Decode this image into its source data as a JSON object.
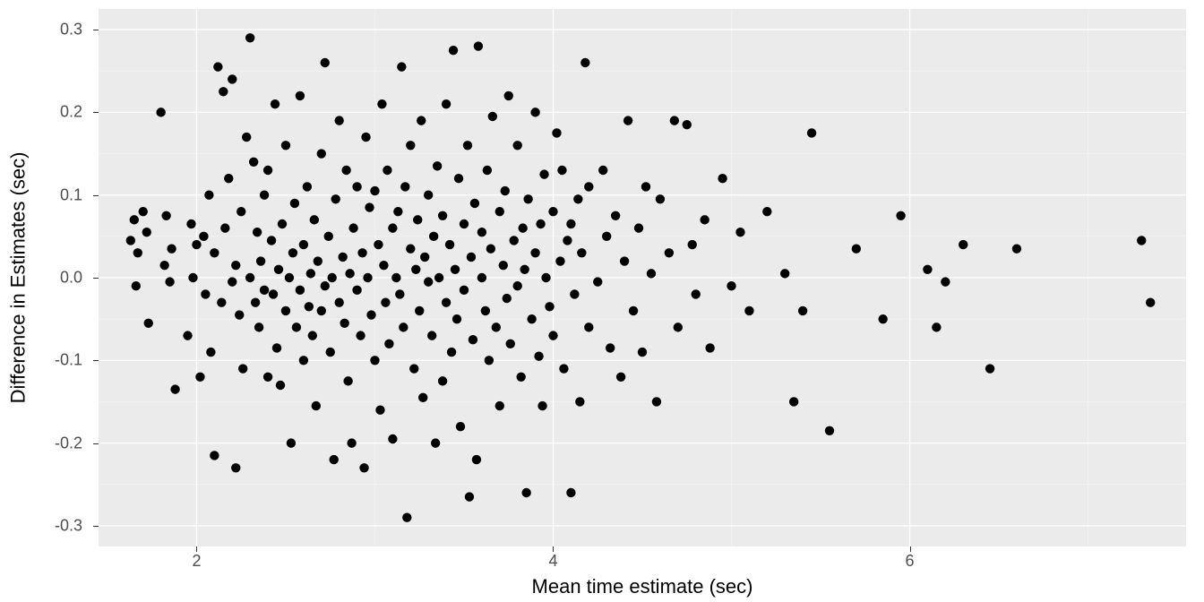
{
  "chart": {
    "type": "scatter",
    "background_color": "#ffffff",
    "panel_bg_color": "#ebebeb",
    "grid_major_color": "#ffffff",
    "grid_minor_color": "#f5f5f5",
    "point_color": "#000000",
    "point_radius": 5.2,
    "axis_text_color": "#4d4d4d",
    "axis_title_color": "#000000",
    "axis_title_fontsize": 22,
    "axis_text_fontsize": 18,
    "x": {
      "label": "Mean time estimate (sec)",
      "lim": [
        1.45,
        7.55
      ],
      "major_ticks": [
        2,
        4,
        6
      ],
      "minor_ticks": [
        3,
        5,
        7
      ]
    },
    "y": {
      "label": "Difference in Estimates (sec)",
      "lim": [
        -0.325,
        0.325
      ],
      "major_ticks": [
        -0.3,
        -0.2,
        -0.1,
        0.0,
        0.1,
        0.2,
        0.3
      ],
      "minor_ticks": [
        -0.25,
        -0.15,
        -0.05,
        0.05,
        0.15,
        0.25
      ]
    },
    "y_tick_labels": [
      "-0.3",
      "-0.2",
      "-0.1",
      "0.0",
      "0.1",
      "0.2",
      "0.3"
    ],
    "x_tick_labels": [
      "2",
      "4",
      "6"
    ],
    "points": [
      [
        1.63,
        0.045
      ],
      [
        1.65,
        0.07
      ],
      [
        1.66,
        -0.01
      ],
      [
        1.67,
        0.03
      ],
      [
        1.7,
        0.08
      ],
      [
        1.72,
        0.055
      ],
      [
        1.73,
        -0.055
      ],
      [
        1.8,
        0.2
      ],
      [
        1.82,
        0.015
      ],
      [
        1.83,
        0.075
      ],
      [
        1.85,
        -0.005
      ],
      [
        1.86,
        0.035
      ],
      [
        1.88,
        -0.135
      ],
      [
        1.95,
        -0.07
      ],
      [
        1.97,
        0.065
      ],
      [
        1.98,
        0.0
      ],
      [
        2.0,
        0.04
      ],
      [
        2.02,
        -0.12
      ],
      [
        2.04,
        0.05
      ],
      [
        2.05,
        -0.02
      ],
      [
        2.07,
        0.1
      ],
      [
        2.08,
        -0.09
      ],
      [
        2.1,
        0.03
      ],
      [
        2.1,
        -0.215
      ],
      [
        2.12,
        0.255
      ],
      [
        2.14,
        -0.03
      ],
      [
        2.15,
        0.225
      ],
      [
        2.16,
        0.06
      ],
      [
        2.18,
        0.12
      ],
      [
        2.2,
        -0.005
      ],
      [
        2.2,
        0.24
      ],
      [
        2.22,
        0.015
      ],
      [
        2.22,
        -0.23
      ],
      [
        2.24,
        -0.045
      ],
      [
        2.25,
        0.08
      ],
      [
        2.26,
        -0.11
      ],
      [
        2.28,
        0.17
      ],
      [
        2.3,
        0.0
      ],
      [
        2.3,
        0.29
      ],
      [
        2.32,
        0.14
      ],
      [
        2.33,
        -0.03
      ],
      [
        2.34,
        0.055
      ],
      [
        2.35,
        -0.06
      ],
      [
        2.36,
        0.02
      ],
      [
        2.38,
        -0.015
      ],
      [
        2.38,
        0.1
      ],
      [
        2.4,
        -0.12
      ],
      [
        2.4,
        0.13
      ],
      [
        2.42,
        0.045
      ],
      [
        2.43,
        -0.02
      ],
      [
        2.44,
        0.21
      ],
      [
        2.45,
        -0.085
      ],
      [
        2.46,
        0.01
      ],
      [
        2.47,
        -0.13
      ],
      [
        2.48,
        0.065
      ],
      [
        2.5,
        -0.04
      ],
      [
        2.5,
        0.16
      ],
      [
        2.52,
        0.0
      ],
      [
        2.53,
        -0.2
      ],
      [
        2.54,
        0.03
      ],
      [
        2.55,
        0.09
      ],
      [
        2.56,
        -0.06
      ],
      [
        2.58,
        -0.015
      ],
      [
        2.58,
        0.22
      ],
      [
        2.6,
        0.04
      ],
      [
        2.6,
        -0.1
      ],
      [
        2.62,
        0.11
      ],
      [
        2.63,
        -0.035
      ],
      [
        2.64,
        0.005
      ],
      [
        2.65,
        -0.07
      ],
      [
        2.66,
        0.07
      ],
      [
        2.67,
        -0.155
      ],
      [
        2.68,
        0.02
      ],
      [
        2.7,
        -0.04
      ],
      [
        2.7,
        0.15
      ],
      [
        2.72,
        -0.01
      ],
      [
        2.72,
        0.26
      ],
      [
        2.74,
        0.05
      ],
      [
        2.75,
        -0.09
      ],
      [
        2.76,
        0.0
      ],
      [
        2.77,
        -0.22
      ],
      [
        2.78,
        0.095
      ],
      [
        2.8,
        -0.03
      ],
      [
        2.8,
        0.19
      ],
      [
        2.82,
        0.025
      ],
      [
        2.83,
        -0.055
      ],
      [
        2.84,
        0.13
      ],
      [
        2.85,
        -0.125
      ],
      [
        2.86,
        0.005
      ],
      [
        2.87,
        -0.2
      ],
      [
        2.88,
        0.06
      ],
      [
        2.9,
        -0.015
      ],
      [
        2.9,
        0.11
      ],
      [
        2.92,
        -0.07
      ],
      [
        2.93,
        0.03
      ],
      [
        2.94,
        -0.23
      ],
      [
        2.95,
        0.17
      ],
      [
        2.96,
        0.0
      ],
      [
        2.97,
        0.085
      ],
      [
        2.98,
        -0.045
      ],
      [
        3.0,
        0.105
      ],
      [
        3.0,
        -0.1
      ],
      [
        3.02,
        0.04
      ],
      [
        3.03,
        -0.16
      ],
      [
        3.04,
        0.21
      ],
      [
        3.05,
        0.015
      ],
      [
        3.06,
        -0.03
      ],
      [
        3.07,
        0.13
      ],
      [
        3.08,
        -0.08
      ],
      [
        3.1,
        0.06
      ],
      [
        3.1,
        -0.195
      ],
      [
        3.12,
        0.0
      ],
      [
        3.13,
        0.08
      ],
      [
        3.14,
        -0.02
      ],
      [
        3.15,
        0.255
      ],
      [
        3.16,
        -0.06
      ],
      [
        3.17,
        0.11
      ],
      [
        3.18,
        -0.29
      ],
      [
        3.2,
        0.035
      ],
      [
        3.2,
        0.16
      ],
      [
        3.22,
        -0.11
      ],
      [
        3.23,
        0.01
      ],
      [
        3.24,
        0.07
      ],
      [
        3.25,
        -0.04
      ],
      [
        3.26,
        0.19
      ],
      [
        3.27,
        -0.145
      ],
      [
        3.28,
        0.025
      ],
      [
        3.3,
        -0.005
      ],
      [
        3.3,
        0.1
      ],
      [
        3.32,
        -0.07
      ],
      [
        3.33,
        0.05
      ],
      [
        3.34,
        -0.2
      ],
      [
        3.35,
        0.135
      ],
      [
        3.36,
        0.0
      ],
      [
        3.38,
        0.075
      ],
      [
        3.38,
        -0.125
      ],
      [
        3.4,
        -0.03
      ],
      [
        3.4,
        0.21
      ],
      [
        3.42,
        0.04
      ],
      [
        3.43,
        -0.09
      ],
      [
        3.44,
        0.275
      ],
      [
        3.45,
        0.01
      ],
      [
        3.46,
        -0.05
      ],
      [
        3.47,
        0.12
      ],
      [
        3.48,
        -0.18
      ],
      [
        3.5,
        0.065
      ],
      [
        3.5,
        -0.015
      ],
      [
        3.52,
        0.16
      ],
      [
        3.53,
        -0.265
      ],
      [
        3.54,
        0.025
      ],
      [
        3.55,
        -0.075
      ],
      [
        3.56,
        0.09
      ],
      [
        3.57,
        -0.22
      ],
      [
        3.58,
        0.28
      ],
      [
        3.6,
        0.0
      ],
      [
        3.6,
        0.055
      ],
      [
        3.62,
        -0.04
      ],
      [
        3.63,
        0.13
      ],
      [
        3.64,
        -0.1
      ],
      [
        3.65,
        0.035
      ],
      [
        3.66,
        0.195
      ],
      [
        3.68,
        -0.06
      ],
      [
        3.7,
        0.08
      ],
      [
        3.7,
        -0.155
      ],
      [
        3.72,
        0.015
      ],
      [
        3.73,
        0.105
      ],
      [
        3.74,
        -0.025
      ],
      [
        3.75,
        0.22
      ],
      [
        3.76,
        -0.08
      ],
      [
        3.78,
        0.045
      ],
      [
        3.8,
        -0.01
      ],
      [
        3.8,
        0.16
      ],
      [
        3.82,
        -0.12
      ],
      [
        3.83,
        0.06
      ],
      [
        3.84,
        0.01
      ],
      [
        3.85,
        -0.26
      ],
      [
        3.86,
        0.095
      ],
      [
        3.88,
        -0.05
      ],
      [
        3.9,
        0.03
      ],
      [
        3.9,
        0.2
      ],
      [
        3.92,
        -0.095
      ],
      [
        3.93,
        0.065
      ],
      [
        3.94,
        -0.155
      ],
      [
        3.95,
        0.125
      ],
      [
        3.96,
        0.0
      ],
      [
        3.98,
        -0.035
      ],
      [
        4.0,
        0.08
      ],
      [
        4.0,
        -0.07
      ],
      [
        4.02,
        0.175
      ],
      [
        4.04,
        0.02
      ],
      [
        4.05,
        0.13
      ],
      [
        4.06,
        -0.11
      ],
      [
        4.08,
        0.045
      ],
      [
        4.1,
        -0.26
      ],
      [
        4.1,
        0.065
      ],
      [
        4.12,
        -0.02
      ],
      [
        4.14,
        0.095
      ],
      [
        4.15,
        -0.15
      ],
      [
        4.16,
        0.03
      ],
      [
        4.18,
        0.26
      ],
      [
        4.2,
        -0.06
      ],
      [
        4.2,
        0.11
      ],
      [
        4.25,
        -0.005
      ],
      [
        4.28,
        0.13
      ],
      [
        4.3,
        0.05
      ],
      [
        4.32,
        -0.085
      ],
      [
        4.35,
        0.075
      ],
      [
        4.38,
        -0.12
      ],
      [
        4.4,
        0.02
      ],
      [
        4.42,
        0.19
      ],
      [
        4.45,
        -0.04
      ],
      [
        4.48,
        0.06
      ],
      [
        4.5,
        -0.09
      ],
      [
        4.52,
        0.11
      ],
      [
        4.55,
        0.005
      ],
      [
        4.58,
        -0.15
      ],
      [
        4.6,
        0.095
      ],
      [
        4.65,
        0.03
      ],
      [
        4.68,
        0.19
      ],
      [
        4.7,
        -0.06
      ],
      [
        4.75,
        0.185
      ],
      [
        4.78,
        0.04
      ],
      [
        4.8,
        -0.02
      ],
      [
        4.85,
        0.07
      ],
      [
        4.88,
        -0.085
      ],
      [
        4.95,
        0.12
      ],
      [
        5.0,
        -0.01
      ],
      [
        5.05,
        0.055
      ],
      [
        5.1,
        -0.04
      ],
      [
        5.2,
        0.08
      ],
      [
        5.3,
        0.005
      ],
      [
        5.35,
        -0.15
      ],
      [
        5.4,
        -0.04
      ],
      [
        5.45,
        0.175
      ],
      [
        5.55,
        -0.185
      ],
      [
        5.7,
        0.035
      ],
      [
        5.85,
        -0.05
      ],
      [
        5.95,
        0.075
      ],
      [
        6.1,
        0.01
      ],
      [
        6.15,
        -0.06
      ],
      [
        6.2,
        -0.005
      ],
      [
        6.3,
        0.04
      ],
      [
        6.45,
        -0.11
      ],
      [
        6.6,
        0.035
      ],
      [
        7.3,
        0.045
      ],
      [
        7.35,
        -0.03
      ]
    ]
  }
}
